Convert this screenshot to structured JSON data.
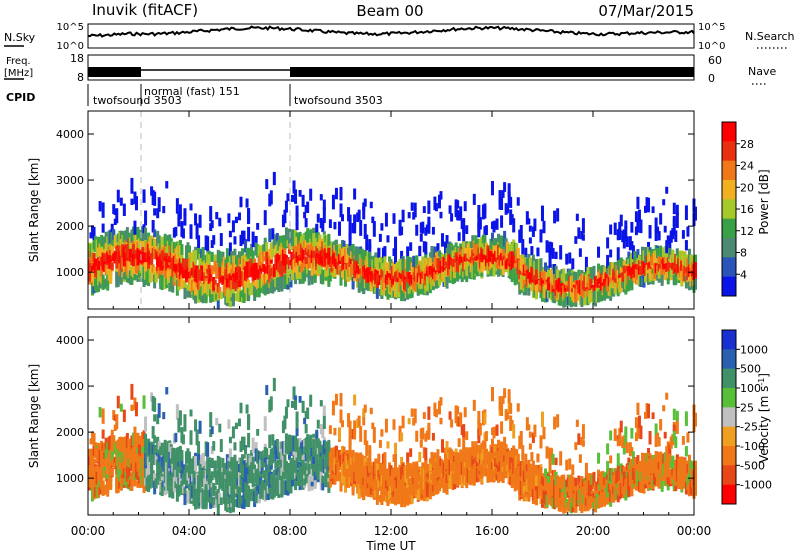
{
  "header": {
    "station": "Inuvik (fitACF)",
    "beam": "Beam 00",
    "date": "07/Mar/2015"
  },
  "strips": {
    "nsky_label": "N.Sky",
    "nsky_ticks": [
      "10^5",
      "10^0"
    ],
    "nsearch_label": "N.Search",
    "nsearch_ticks": [
      "10^5",
      "10^0"
    ],
    "freq_label_line1": "Freq.",
    "freq_label_line2": "[MHz]",
    "freq_ticks": [
      "18",
      "8"
    ],
    "nave_label": "Nave",
    "nave_ticks": [
      "60",
      "0"
    ],
    "cpid_label": "CPID",
    "cpid_segments": [
      {
        "label": "twofsound 3503",
        "start_h": 0,
        "end_h": 2.0
      },
      {
        "label": "normal (fast) 151",
        "start_h": 2.0,
        "end_h": 8.0
      },
      {
        "label": "twofsound 3503",
        "start_h": 8.0,
        "end_h": 24.0
      }
    ]
  },
  "colors": {
    "power": [
      "#0a14e6",
      "#2a55b8",
      "#4a8a70",
      "#3aa048",
      "#a6c828",
      "#f0b020",
      "#f07818",
      "#e83010",
      "#ff0000"
    ],
    "velocity": [
      "#ff0000",
      "#e84818",
      "#f07818",
      "#f0a020",
      "#c0c0c0",
      "#58c038",
      "#409068",
      "#2a60b0",
      "#1830d0"
    ]
  },
  "chart_data": [
    {
      "type": "heatmap",
      "name": "power-panel",
      "ylabel": "Slant Range [km]",
      "xlabel": "Time UT",
      "xlim": [
        0,
        24
      ],
      "ylim": [
        200,
        4500
      ],
      "x_ticks": [
        "00:00",
        "04:00",
        "08:00",
        "12:00",
        "16:00",
        "20:00",
        "00:00"
      ],
      "y_ticks": [
        1000,
        2000,
        3000,
        4000
      ],
      "colorbar_label": "Power [dB]",
      "colorbar_ticks": [
        "4",
        "8",
        "12",
        "16",
        "20",
        "24",
        "28"
      ],
      "range_db": [
        0,
        32
      ]
    },
    {
      "type": "heatmap",
      "name": "velocity-panel",
      "ylabel": "Slant Range [km]",
      "xlabel": "Time UT",
      "xlim": [
        0,
        24
      ],
      "ylim": [
        200,
        4500
      ],
      "x_ticks": [
        "00:00",
        "04:00",
        "08:00",
        "12:00",
        "16:00",
        "20:00",
        "00:00"
      ],
      "y_ticks": [
        1000,
        2000,
        3000,
        4000
      ],
      "colorbar_label": "Velocity [m s^-1]",
      "colorbar_ticks": [
        "1000",
        "500",
        "100",
        "25",
        "-25",
        "-100",
        "-500",
        "-1000"
      ]
    }
  ],
  "footer": {
    "xlabel": "Time UT"
  }
}
